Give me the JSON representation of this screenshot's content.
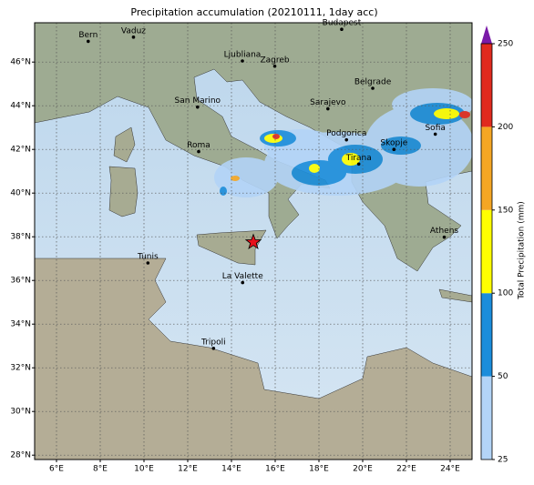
{
  "chart_data": {
    "type": "map",
    "title": "Precipitation accumulation (20210111, 1day acc)",
    "xlim": [
      5,
      25
    ],
    "ylim": [
      27.8,
      47.8
    ],
    "xticks": [
      {
        "value": 6,
        "label": "6°E"
      },
      {
        "value": 8,
        "label": "8°E"
      },
      {
        "value": 10,
        "label": "10°E"
      },
      {
        "value": 12,
        "label": "12°E"
      },
      {
        "value": 14,
        "label": "14°E"
      },
      {
        "value": 16,
        "label": "16°E"
      },
      {
        "value": 18,
        "label": "18°E"
      },
      {
        "value": 20,
        "label": "20°E"
      },
      {
        "value": 22,
        "label": "22°E"
      },
      {
        "value": 24,
        "label": "24°E"
      }
    ],
    "yticks": [
      {
        "value": 28,
        "label": "28°N"
      },
      {
        "value": 30,
        "label": "30°N"
      },
      {
        "value": 32,
        "label": "32°N"
      },
      {
        "value": 34,
        "label": "34°N"
      },
      {
        "value": 36,
        "label": "36°N"
      },
      {
        "value": 38,
        "label": "38°N"
      },
      {
        "value": 40,
        "label": "40°N"
      },
      {
        "value": 42,
        "label": "42°N"
      },
      {
        "value": 44,
        "label": "44°N"
      },
      {
        "value": 46,
        "label": "46°N"
      }
    ],
    "grid": true,
    "cities": [
      {
        "name": "Bern",
        "lon": 7.45,
        "lat": 46.95
      },
      {
        "name": "Vaduz",
        "lon": 9.52,
        "lat": 47.14
      },
      {
        "name": "Budapest",
        "lon": 19.04,
        "lat": 47.5
      },
      {
        "name": "Ljubliana",
        "lon": 14.5,
        "lat": 46.05
      },
      {
        "name": "Zagreb",
        "lon": 15.98,
        "lat": 45.81
      },
      {
        "name": "Belgrade",
        "lon": 20.46,
        "lat": 44.8
      },
      {
        "name": "San Marino",
        "lon": 12.45,
        "lat": 43.94
      },
      {
        "name": "Sarajevo",
        "lon": 18.41,
        "lat": 43.86
      },
      {
        "name": "Roma",
        "lon": 12.5,
        "lat": 41.9
      },
      {
        "name": "Podgorica",
        "lon": 19.26,
        "lat": 42.44
      },
      {
        "name": "Sofia",
        "lon": 23.32,
        "lat": 42.7
      },
      {
        "name": "Skopje",
        "lon": 21.43,
        "lat": 42.0
      },
      {
        "name": "Tirana",
        "lon": 19.82,
        "lat": 41.33
      },
      {
        "name": "Athens",
        "lon": 23.73,
        "lat": 37.98
      },
      {
        "name": "Tunis",
        "lon": 10.18,
        "lat": 36.8
      },
      {
        "name": "La Valette",
        "lon": 14.51,
        "lat": 35.9
      },
      {
        "name": "Tripoli",
        "lon": 13.18,
        "lat": 32.89
      }
    ],
    "marker": {
      "lon": 15.0,
      "lat": 37.75,
      "color": "#e8101a"
    },
    "colorbar": {
      "label": "Total Precipitation (mm)",
      "ticks": [
        25,
        50,
        100,
        150,
        200,
        250
      ],
      "colors": [
        "#b3d4f7",
        "#1b8ddb",
        "#ffff00",
        "#f5a623",
        "#e02a1e"
      ],
      "over_color": "#7a1aa8"
    }
  }
}
